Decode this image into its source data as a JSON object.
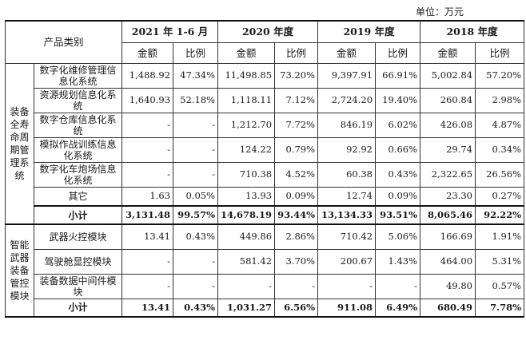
{
  "unit_label": "单位：万元",
  "header": {
    "category": "产品类别",
    "periods": [
      "2021 年 1-6 月",
      "2020 年度",
      "2019 年度",
      "2018 年度"
    ],
    "amount": "金额",
    "ratio": "比例"
  },
  "groups": [
    {
      "label": "装备全寿命周期管理系统",
      "rows": [
        {
          "name": "数字化维修管理信息化系统",
          "cells": [
            "1,488.92",
            "47.34%",
            "11,498.85",
            "73.20%",
            "9,397.91",
            "66.91%",
            "5,002.84",
            "57.20%"
          ]
        },
        {
          "name": "资源规划信息化系统",
          "cells": [
            "1,640.93",
            "52.18%",
            "1,118.11",
            "7.12%",
            "2,724.20",
            "19.40%",
            "260.84",
            "2.98%"
          ]
        },
        {
          "name": "数字仓库信息化系统",
          "cells": [
            "-",
            "-",
            "1,212.70",
            "7.72%",
            "846.19",
            "6.02%",
            "426.08",
            "4.87%"
          ]
        },
        {
          "name": "模拟作战训练信息化系统",
          "cells": [
            "-",
            "-",
            "124.22",
            "0.79%",
            "92.92",
            "0.66%",
            "29.74",
            "0.34%"
          ]
        },
        {
          "name": "数字化车炮场信息化系统",
          "cells": [
            "-",
            "-",
            "710.38",
            "4.52%",
            "60.38",
            "0.43%",
            "2,322.65",
            "26.56%"
          ]
        },
        {
          "name": "其它",
          "cells": [
            "1.63",
            "0.05%",
            "13.93",
            "0.09%",
            "12.74",
            "0.09%",
            "23.30",
            "0.27%"
          ]
        }
      ],
      "subtotal": {
        "name": "小计",
        "cells": [
          "3,131.48",
          "99.57%",
          "14,678.19",
          "93.44%",
          "13,134.33",
          "93.51%",
          "8,065.46",
          "92.22%"
        ]
      }
    },
    {
      "label": "智能武器装备管控模块",
      "rows": [
        {
          "name": "武器火控模块",
          "cells": [
            "13.41",
            "0.43%",
            "449.86",
            "2.86%",
            "710.42",
            "5.06%",
            "166.69",
            "1.91%"
          ]
        },
        {
          "name": "驾驶舱显控模块",
          "cells": [
            "-",
            "-",
            "581.42",
            "3.70%",
            "200.67",
            "1.43%",
            "464.00",
            "5.31%"
          ]
        },
        {
          "name": "装备数据中间件模块",
          "cells": [
            "-",
            "-",
            "-",
            "-",
            "-",
            "-",
            "49.80",
            "0.57%"
          ]
        }
      ],
      "subtotal": {
        "name": "小计",
        "cells": [
          "13.41",
          "0.43%",
          "1,031.27",
          "6.56%",
          "911.08",
          "6.49%",
          "680.49",
          "7.78%"
        ]
      }
    }
  ]
}
